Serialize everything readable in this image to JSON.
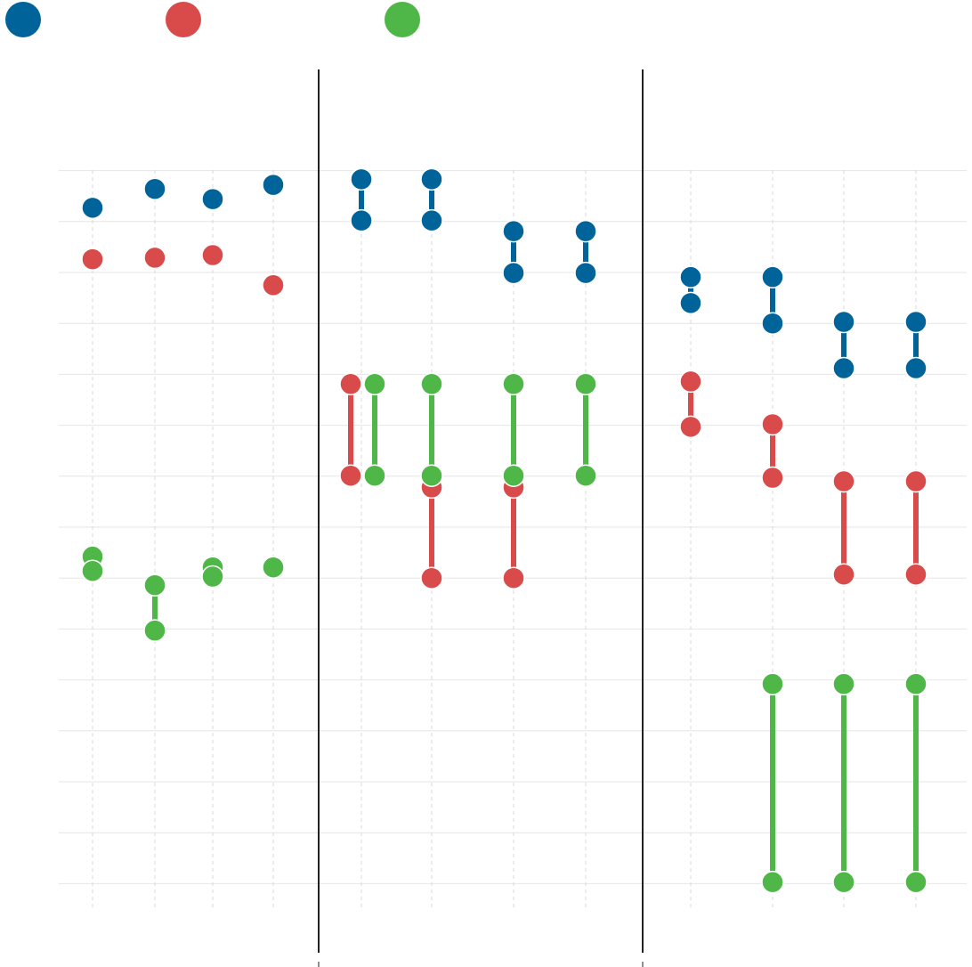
{
  "chart_data": {
    "type": "dumbbell",
    "categories": [
      null,
      null,
      null,
      null,
      null,
      null,
      null,
      null,
      null,
      null,
      null,
      null
    ],
    "series": [
      {
        "color": "#00639a",
        "start": [
          13.27,
          13.64,
          13.44,
          13.72,
          13.83,
          13.83,
          12.81,
          12.81,
          11.91,
          11.91,
          11.03,
          11.03
        ],
        "end": [
          13.27,
          13.64,
          13.44,
          13.72,
          13.02,
          13.02,
          11.99,
          11.99,
          11.4,
          11.0,
          10.12,
          10.12
        ]
      },
      {
        "color": "#d94a4a",
        "start": [
          12.26,
          12.29,
          12.34,
          11.75,
          9.81,
          7.78,
          7.78,
          null,
          9.86,
          9.02,
          7.9,
          7.9
        ],
        "end": [
          12.26,
          12.29,
          12.34,
          11.75,
          8.01,
          6.0,
          6.0,
          null,
          8.97,
          7.97,
          6.07,
          6.07
        ]
      },
      {
        "color": "#4fb748",
        "start": [
          6.42,
          5.86,
          6.21,
          6.21,
          9.81,
          9.81,
          9.81,
          9.81,
          null,
          3.92,
          3.92,
          3.92
        ],
        "end": [
          6.14,
          4.97,
          6.03,
          6.21,
          8.01,
          8.01,
          8.01,
          8.01,
          null,
          0.03,
          0.03,
          0.03
        ]
      }
    ],
    "ylim": [
      -0.5,
      14.5
    ],
    "yticks": [
      0,
      1,
      2,
      3,
      4,
      5,
      6,
      7,
      8,
      9,
      10,
      11,
      12,
      13,
      14
    ],
    "grid": true
  }
}
